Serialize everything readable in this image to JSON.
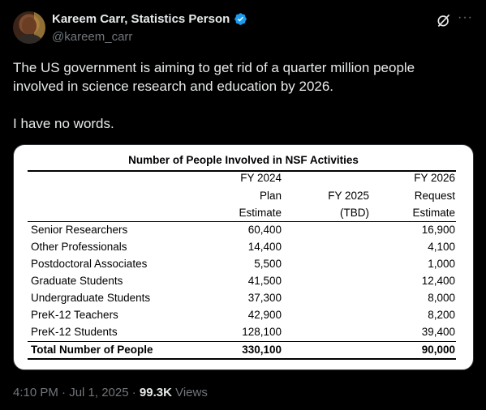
{
  "user": {
    "display_name": "Kareem Carr, Statistics Person",
    "handle": "@kareem_carr"
  },
  "tweet": {
    "text": "The US government is aiming to get rid of a quarter million people involved in science research and education by 2026.\n\nI have no words."
  },
  "table": {
    "title": "Number of People Involved in NSF Activities",
    "headers": {
      "fy2024": [
        "FY 2024",
        "Plan",
        "Estimate"
      ],
      "fy2025": [
        "FY 2025",
        "(TBD)"
      ],
      "fy2026": [
        "FY 2026",
        "Request",
        "Estimate"
      ]
    },
    "rows": [
      {
        "label": "Senior Researchers",
        "fy2024": "60,400",
        "fy2026": "16,900"
      },
      {
        "label": "Other Professionals",
        "fy2024": "14,400",
        "fy2026": "4,100"
      },
      {
        "label": "Postdoctoral Associates",
        "fy2024": "5,500",
        "fy2026": "1,000"
      },
      {
        "label": "Graduate Students",
        "fy2024": "41,500",
        "fy2026": "12,400"
      },
      {
        "label": "Undergraduate Students",
        "fy2024": "37,300",
        "fy2026": "8,000"
      },
      {
        "label": "PreK-12 Teachers",
        "fy2024": "42,900",
        "fy2026": "8,200"
      },
      {
        "label": "PreK-12 Students",
        "fy2024": "128,100",
        "fy2026": "39,400"
      }
    ],
    "total": {
      "label": "Total Number of People",
      "fy2024": "330,100",
      "fy2026": "90,000"
    }
  },
  "footer": {
    "time": "4:10 PM · Jul 1, 2025 · ",
    "views_count": "99.3K",
    "views_label": " Views"
  },
  "icons": {
    "verified_color": "#1d9bf0"
  }
}
